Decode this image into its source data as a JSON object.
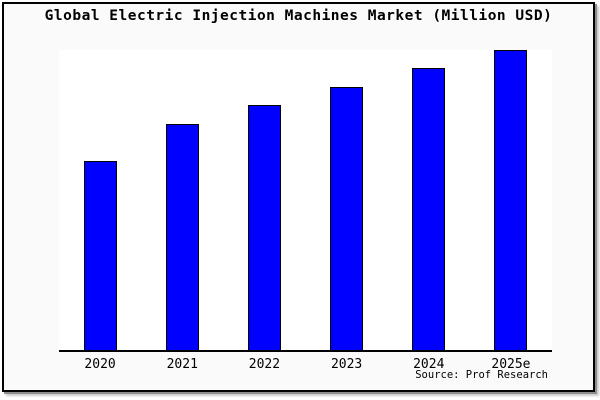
{
  "figure": {
    "canvas_background": "#ffffff",
    "panel_background": "#fafafa",
    "frame_color": "#000000",
    "shadow_color": "#8e8e8e"
  },
  "chart_data": {
    "type": "bar",
    "title": "Global Electric Injection Machines Market (Million USD)",
    "categories": [
      "2020",
      "2021",
      "2022",
      "2023",
      "2024",
      "2025e"
    ],
    "series": [
      {
        "name": "Global Electric Injection Machines Market",
        "values": [
          62.7,
          75.0,
          81.3,
          87.3,
          93.7,
          99.7
        ]
      }
    ],
    "values_unit": "relative bar height, % of plot height (no numeric value axis shown in chart)",
    "xlabel": "",
    "ylabel": "",
    "y_axis_ticks": "none shown",
    "grid": false,
    "legend": "none",
    "bar_color": "#0000ff",
    "bar_border_color": "#000000",
    "plot_background": "#ffffff",
    "axis_line_color": "#000000",
    "source_note": "Source: Prof Research"
  }
}
